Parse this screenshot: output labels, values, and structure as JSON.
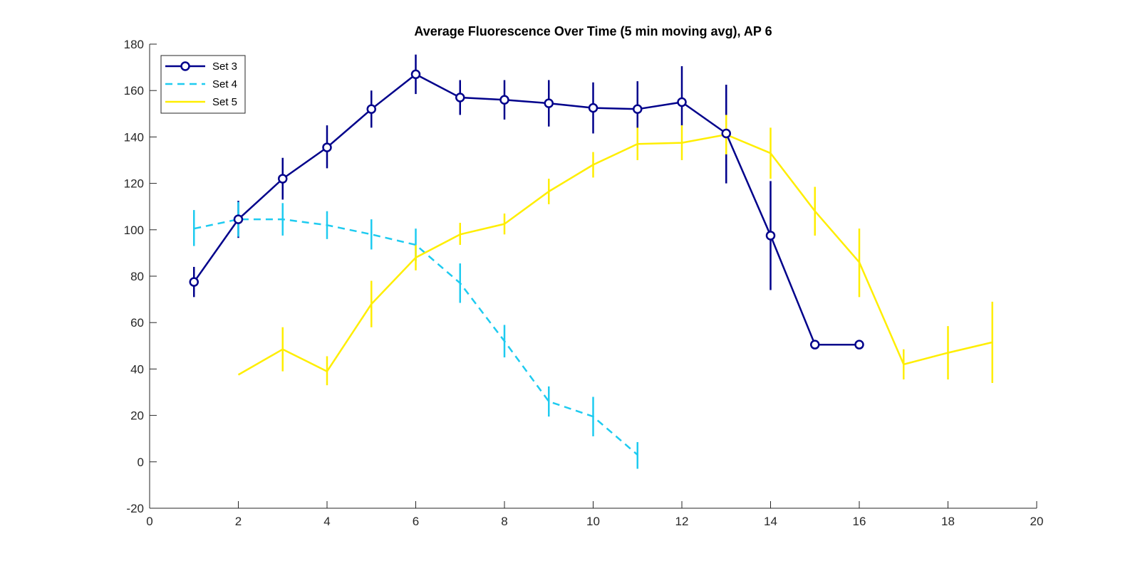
{
  "chart_data": {
    "type": "line",
    "title": "Average Fluorescence Over Time (5 min moving avg), AP 6",
    "xlabel": "",
    "ylabel": "",
    "xlim": [
      0,
      20
    ],
    "ylim": [
      -20,
      180
    ],
    "xticks": [
      0,
      2,
      4,
      6,
      8,
      10,
      12,
      14,
      16,
      18,
      20
    ],
    "yticks": [
      -20,
      0,
      20,
      40,
      60,
      80,
      100,
      120,
      140,
      160,
      180
    ],
    "grid": false,
    "legend_position": "top-left",
    "series": [
      {
        "name": "Set 3",
        "color": "#00008b",
        "line_style": "solid",
        "marker": "circle",
        "x": [
          1,
          2,
          3,
          4,
          5,
          6,
          7,
          8,
          9,
          10,
          11,
          12,
          13,
          14,
          15,
          16
        ],
        "y": [
          77.5,
          104.5,
          122,
          135.5,
          152,
          167,
          157,
          156,
          154.5,
          152.5,
          152,
          155,
          141.5,
          97.5,
          50.5,
          50.5
        ],
        "err_low": [
          71,
          96.5,
          113,
          126.5,
          144,
          158.5,
          149.5,
          147.5,
          144.5,
          141.5,
          140,
          145,
          120,
          74,
          null,
          null
        ],
        "err_high": [
          84,
          112.5,
          131,
          145,
          160,
          175.5,
          164.5,
          164.5,
          164.5,
          163.5,
          164,
          170.5,
          162.5,
          121,
          null,
          null
        ]
      },
      {
        "name": "Set 4",
        "color": "#1ecbf0",
        "line_style": "dashed",
        "marker": "none",
        "x": [
          1,
          2,
          3,
          4,
          5,
          6,
          7,
          8,
          9,
          10,
          11
        ],
        "y": [
          100.5,
          104.5,
          104.5,
          102,
          98,
          93.5,
          77,
          52,
          26,
          19.5,
          3
        ],
        "err_low": [
          93,
          97,
          97.5,
          96,
          91.5,
          86.5,
          68.5,
          45,
          19.5,
          11,
          -3
        ],
        "err_high": [
          108.5,
          112,
          111.5,
          108,
          104.5,
          100.5,
          85.5,
          59,
          32.5,
          28,
          8.5
        ]
      },
      {
        "name": "Set 5",
        "color": "#ffee00",
        "line_style": "solid",
        "marker": "none",
        "x": [
          2,
          3,
          4,
          5,
          6,
          7,
          8,
          9,
          10,
          11,
          12,
          13,
          14,
          15,
          16,
          17,
          18,
          19
        ],
        "y": [
          37.5,
          48.5,
          39,
          68,
          88,
          98,
          102.5,
          116.5,
          128,
          137,
          137.5,
          141,
          133,
          108,
          86,
          42,
          47,
          51.5
        ],
        "err_low": [
          null,
          39,
          33,
          58,
          82.5,
          93.5,
          98,
          111,
          122.5,
          130,
          130,
          132.5,
          122,
          97.5,
          71,
          35.5,
          35.5,
          34
        ],
        "err_high": [
          null,
          58,
          45.5,
          78,
          93.5,
          103,
          107,
          122,
          133.5,
          144,
          145,
          149.5,
          144,
          118.5,
          100.5,
          48.5,
          58.5,
          69
        ]
      }
    ]
  }
}
